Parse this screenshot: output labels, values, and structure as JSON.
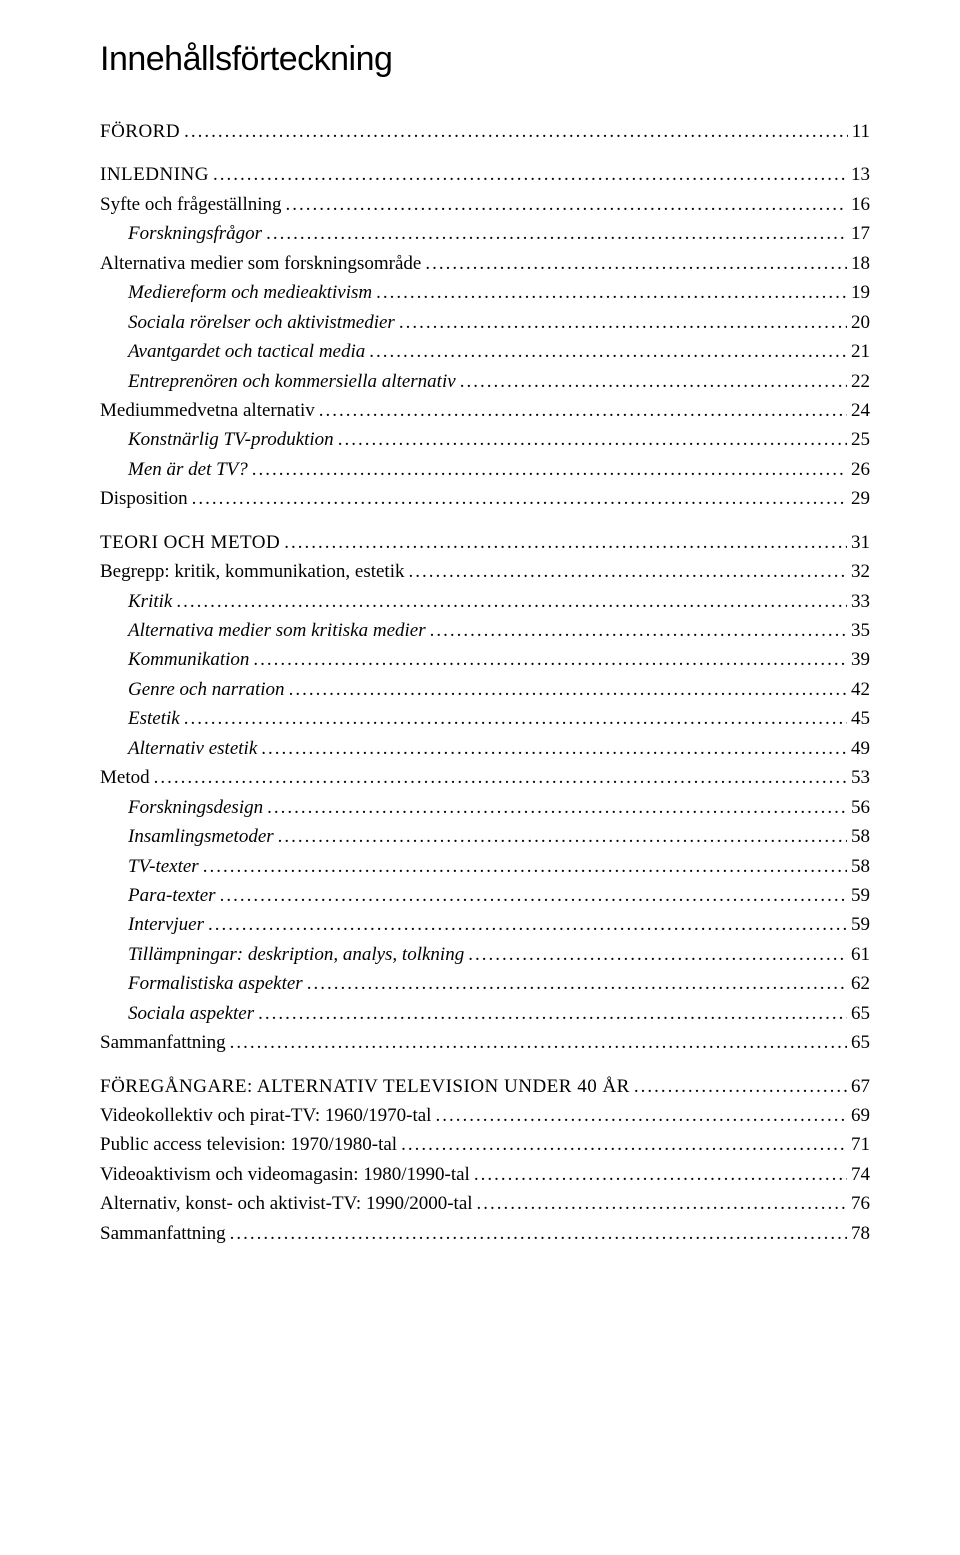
{
  "title": "Innehållsförteckning",
  "entries": [
    {
      "label": "FÖRORD",
      "page": "11",
      "level": 0,
      "section": true
    },
    {
      "label": "INLEDNING",
      "page": "13",
      "level": 0,
      "section": true
    },
    {
      "label": "Syfte och frågeställning",
      "page": "16",
      "level": 1
    },
    {
      "label": "Forskningsfrågor",
      "page": "17",
      "level": 2
    },
    {
      "label": "Alternativa medier som forskningsområde",
      "page": "18",
      "level": 1
    },
    {
      "label": "Mediereform och medieaktivism",
      "page": "19",
      "level": 2
    },
    {
      "label": "Sociala rörelser och aktivistmedier",
      "page": "20",
      "level": 2
    },
    {
      "label": "Avantgardet och tactical media",
      "page": "21",
      "level": 2
    },
    {
      "label": "Entreprenören och kommersiella alternativ",
      "page": "22",
      "level": 2
    },
    {
      "label": "Mediummedvetna alternativ",
      "page": "24",
      "level": 1
    },
    {
      "label": "Konstnärlig TV-produktion",
      "page": "25",
      "level": 2
    },
    {
      "label": "Men är det TV?",
      "page": "26",
      "level": 2
    },
    {
      "label": "Disposition",
      "page": "29",
      "level": 1
    },
    {
      "label": "TEORI OCH METOD",
      "page": "31",
      "level": 0,
      "section": true
    },
    {
      "label": "Begrepp: kritik, kommunikation, estetik",
      "page": "32",
      "level": 1
    },
    {
      "label": "Kritik",
      "page": "33",
      "level": 2
    },
    {
      "label": "Alternativa medier som kritiska medier",
      "page": "35",
      "level": 3
    },
    {
      "label": "Kommunikation",
      "page": "39",
      "level": 2
    },
    {
      "label": "Genre och narration",
      "page": "42",
      "level": 3
    },
    {
      "label": "Estetik",
      "page": "45",
      "level": 2
    },
    {
      "label": "Alternativ estetik",
      "page": "49",
      "level": 3
    },
    {
      "label": "Metod",
      "page": "53",
      "level": 1
    },
    {
      "label": "Forskningsdesign",
      "page": "56",
      "level": 2
    },
    {
      "label": "Insamlingsmetoder",
      "page": "58",
      "level": 2
    },
    {
      "label": "TV-texter",
      "page": "58",
      "level": 3
    },
    {
      "label": "Para-texter",
      "page": "59",
      "level": 3
    },
    {
      "label": "Intervjuer",
      "page": "59",
      "level": 3
    },
    {
      "label": "Tillämpningar: deskription, analys, tolkning",
      "page": "61",
      "level": 2
    },
    {
      "label": "Formalistiska aspekter",
      "page": "62",
      "level": 3
    },
    {
      "label": "Sociala aspekter",
      "page": "65",
      "level": 3
    },
    {
      "label": "Sammanfattning",
      "page": "65",
      "level": 1
    },
    {
      "label": "FÖREGÅNGARE: ALTERNATIV TELEVISION UNDER 40 ÅR",
      "page": "67",
      "level": 0,
      "section": true
    },
    {
      "label": "Videokollektiv och pirat-TV: 1960/1970-tal",
      "page": "69",
      "level": 1
    },
    {
      "label": "Public access television: 1970/1980-tal",
      "page": "71",
      "level": 1
    },
    {
      "label": "Videoaktivism och videomagasin: 1980/1990-tal",
      "page": "74",
      "level": 1
    },
    {
      "label": "Alternativ, konst- och aktivist-TV: 1990/2000-tal",
      "page": "76",
      "level": 1
    },
    {
      "label": "Sammanfattning",
      "page": "78",
      "level": 1
    }
  ]
}
